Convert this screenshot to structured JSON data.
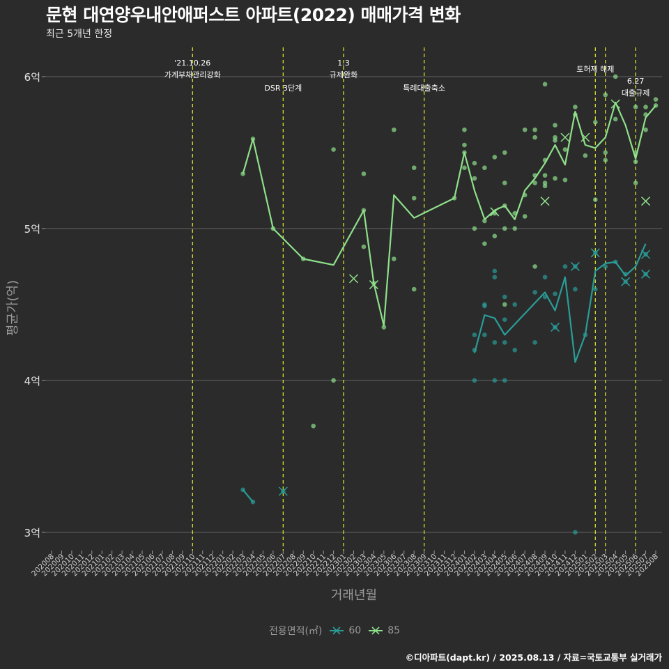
{
  "title": "문현 대연양우내안애퍼스트 아파트(2022) 매매가격 변화",
  "subtitle": "최근 5개년 한정",
  "caption": "©디아파트(dapt.kr) / 2025.08.13 / 자료=국토교통부 실거래가",
  "legend": {
    "title": "전용면적(㎡)",
    "items": [
      {
        "label": "60",
        "color": "#2a9d97"
      },
      {
        "label": "85",
        "color": "#8fe08a"
      }
    ]
  },
  "colors": {
    "background": "#2b2b2c",
    "grid": "#5b5b5b",
    "event_line": "#d7e02b",
    "axis_text": "#999999",
    "annotation_text": "#ffffff"
  },
  "chart_data": {
    "type": "line",
    "title": "문현 대연양우내안애퍼스트 아파트(2022) 매매가격 변화",
    "xlabel": "거래년월",
    "ylabel": "평균가(억)",
    "grid": true,
    "legend_position": "bottom",
    "x": [
      "202008",
      "202009",
      "202010",
      "202011",
      "202012",
      "202101",
      "202102",
      "202103",
      "202104",
      "202105",
      "202106",
      "202107",
      "202108",
      "202109",
      "202110",
      "202111",
      "202112",
      "202201",
      "202202",
      "202203",
      "202204",
      "202205",
      "202206",
      "202207",
      "202208",
      "202209",
      "202210",
      "202211",
      "202212",
      "202301",
      "202302",
      "202303",
      "202304",
      "202305",
      "202306",
      "202307",
      "202308",
      "202309",
      "202310",
      "202311",
      "202312",
      "202401",
      "202402",
      "202403",
      "202404",
      "202405",
      "202406",
      "202407",
      "202408",
      "202409",
      "202410",
      "202411",
      "202412",
      "202501",
      "202502",
      "202503",
      "202504",
      "202505",
      "202506",
      "202507",
      "202508"
    ],
    "ylim": [
      2.88,
      6.22
    ],
    "yticks": [
      {
        "value": 3,
        "label": "3억"
      },
      {
        "value": 4,
        "label": "4억"
      },
      {
        "value": 5,
        "label": "5억"
      },
      {
        "value": 6,
        "label": "6억"
      }
    ],
    "events": [
      {
        "month": "202110",
        "label": "'21.10.26\n가계부채관리강화",
        "tier": "top"
      },
      {
        "month": "202207",
        "label": "DSR 3단계",
        "tier": "low"
      },
      {
        "month": "202301",
        "label": "1.3\n규제완화",
        "tier": "top"
      },
      {
        "month": "202309",
        "label": "특례대출축소",
        "tier": "low"
      },
      {
        "month": "202502",
        "label": "토허제 해제",
        "tier": "mid"
      },
      {
        "month": "202503",
        "label": "",
        "tier": "none"
      },
      {
        "month": "202506",
        "label": "6.27\n대출규제",
        "tier": "lowmid"
      }
    ],
    "series": [
      {
        "name": "60",
        "color": "#2a9d97",
        "line": [
          {
            "x": "202203",
            "y": 3.28
          },
          {
            "x": "202204",
            "y": 3.2
          }
        ],
        "line2": [
          {
            "x": "202402",
            "y": 4.18
          },
          {
            "x": "202403",
            "y": 4.43
          },
          {
            "x": "202404",
            "y": 4.41
          },
          {
            "x": "202405",
            "y": 4.3
          },
          {
            "x": "202406",
            "y": 4.37
          },
          {
            "x": "202409",
            "y": 4.58
          },
          {
            "x": "202410",
            "y": 4.46
          },
          {
            "x": "202411",
            "y": 4.68
          },
          {
            "x": "202412",
            "y": 4.12
          },
          {
            "x": "202501",
            "y": 4.3
          },
          {
            "x": "202502",
            "y": 4.72
          },
          {
            "x": "202503",
            "y": 4.77
          },
          {
            "x": "202504",
            "y": 4.78
          },
          {
            "x": "202505",
            "y": 4.69
          },
          {
            "x": "202506",
            "y": 4.75
          },
          {
            "x": "202507",
            "y": 4.9
          }
        ],
        "points": [
          {
            "x": "202203",
            "y": 3.28
          },
          {
            "x": "202204",
            "y": 3.2
          },
          {
            "x": "202207",
            "y": 3.27
          },
          {
            "x": "202402",
            "y": 4.3
          },
          {
            "x": "202402",
            "y": 4.2
          },
          {
            "x": "202402",
            "y": 4.0
          },
          {
            "x": "202403",
            "y": 4.5
          },
          {
            "x": "202403",
            "y": 4.49
          },
          {
            "x": "202403",
            "y": 4.3
          },
          {
            "x": "202404",
            "y": 4.72
          },
          {
            "x": "202404",
            "y": 4.68
          },
          {
            "x": "202404",
            "y": 4.25
          },
          {
            "x": "202404",
            "y": 4.0
          },
          {
            "x": "202405",
            "y": 4.55
          },
          {
            "x": "202405",
            "y": 4.4
          },
          {
            "x": "202405",
            "y": 4.25
          },
          {
            "x": "202405",
            "y": 4.0
          },
          {
            "x": "202406",
            "y": 4.5
          },
          {
            "x": "202406",
            "y": 4.2
          },
          {
            "x": "202408",
            "y": 4.58
          },
          {
            "x": "202408",
            "y": 4.25
          },
          {
            "x": "202409",
            "y": 4.68
          },
          {
            "x": "202409",
            "y": 4.55
          },
          {
            "x": "202410",
            "y": 4.57
          },
          {
            "x": "202410",
            "y": 4.35
          },
          {
            "x": "202411",
            "y": 4.75
          },
          {
            "x": "202412",
            "y": 4.75
          },
          {
            "x": "202412",
            "y": 4.6
          },
          {
            "x": "202412",
            "y": 3.0
          },
          {
            "x": "202501",
            "y": 4.3
          },
          {
            "x": "202502",
            "y": 4.84
          },
          {
            "x": "202502",
            "y": 4.6
          },
          {
            "x": "202503",
            "y": 4.75
          },
          {
            "x": "202504",
            "y": 4.78
          },
          {
            "x": "202505",
            "y": 4.7
          },
          {
            "x": "202505",
            "y": 4.65
          },
          {
            "x": "202507",
            "y": 4.83
          },
          {
            "x": "202507",
            "y": 4.7
          }
        ],
        "crosses": [
          {
            "x": "202207",
            "y": 3.27
          },
          {
            "x": "202410",
            "y": 4.35
          },
          {
            "x": "202412",
            "y": 4.75
          },
          {
            "x": "202502",
            "y": 4.84
          },
          {
            "x": "202505",
            "y": 4.65
          },
          {
            "x": "202507",
            "y": 4.83
          },
          {
            "x": "202507",
            "y": 4.7
          }
        ]
      },
      {
        "name": "85",
        "color": "#8fe08a",
        "line": [
          {
            "x": "202203",
            "y": 5.36
          },
          {
            "x": "202204",
            "y": 5.59
          },
          {
            "x": "202206",
            "y": 5.0
          },
          {
            "x": "202209",
            "y": 4.8
          },
          {
            "x": "202212",
            "y": 4.76
          },
          {
            "x": "202303",
            "y": 5.12
          },
          {
            "x": "202304",
            "y": 4.64
          },
          {
            "x": "202305",
            "y": 4.36
          },
          {
            "x": "202306",
            "y": 5.22
          },
          {
            "x": "202308",
            "y": 5.07
          },
          {
            "x": "202312",
            "y": 5.2
          },
          {
            "x": "202401",
            "y": 5.5
          },
          {
            "x": "202402",
            "y": 5.25
          },
          {
            "x": "202403",
            "y": 5.06
          },
          {
            "x": "202404",
            "y": 5.12
          },
          {
            "x": "202405",
            "y": 5.15
          },
          {
            "x": "202406",
            "y": 5.06
          },
          {
            "x": "202407",
            "y": 5.25
          },
          {
            "x": "202408",
            "y": 5.33
          },
          {
            "x": "202409",
            "y": 5.43
          },
          {
            "x": "202410",
            "y": 5.55
          },
          {
            "x": "202411",
            "y": 5.42
          },
          {
            "x": "202412",
            "y": 5.77
          },
          {
            "x": "202501",
            "y": 5.55
          },
          {
            "x": "202502",
            "y": 5.53
          },
          {
            "x": "202503",
            "y": 5.6
          },
          {
            "x": "202504",
            "y": 5.83
          },
          {
            "x": "202505",
            "y": 5.68
          },
          {
            "x": "202506",
            "y": 5.46
          },
          {
            "x": "202507",
            "y": 5.73
          },
          {
            "x": "202508",
            "y": 5.81
          }
        ],
        "points": [
          {
            "x": "202203",
            "y": 5.36
          },
          {
            "x": "202204",
            "y": 5.59
          },
          {
            "x": "202206",
            "y": 5.0
          },
          {
            "x": "202209",
            "y": 4.8
          },
          {
            "x": "202210",
            "y": 3.7
          },
          {
            "x": "202212",
            "y": 5.52
          },
          {
            "x": "202212",
            "y": 4.0
          },
          {
            "x": "202303",
            "y": 5.36
          },
          {
            "x": "202303",
            "y": 5.12
          },
          {
            "x": "202303",
            "y": 4.88
          },
          {
            "x": "202304",
            "y": 4.64
          },
          {
            "x": "202305",
            "y": 4.35
          },
          {
            "x": "202306",
            "y": 5.65
          },
          {
            "x": "202306",
            "y": 4.8
          },
          {
            "x": "202308",
            "y": 5.4
          },
          {
            "x": "202308",
            "y": 5.2
          },
          {
            "x": "202308",
            "y": 4.6
          },
          {
            "x": "202312",
            "y": 5.2
          },
          {
            "x": "202401",
            "y": 5.65
          },
          {
            "x": "202401",
            "y": 5.55
          },
          {
            "x": "202401",
            "y": 5.5
          },
          {
            "x": "202401",
            "y": 5.4
          },
          {
            "x": "202402",
            "y": 5.43
          },
          {
            "x": "202402",
            "y": 5.33
          },
          {
            "x": "202402",
            "y": 5.0
          },
          {
            "x": "202403",
            "y": 5.4
          },
          {
            "x": "202403",
            "y": 5.05
          },
          {
            "x": "202403",
            "y": 4.9
          },
          {
            "x": "202404",
            "y": 5.47
          },
          {
            "x": "202404",
            "y": 5.1
          },
          {
            "x": "202404",
            "y": 4.95
          },
          {
            "x": "202405",
            "y": 5.5
          },
          {
            "x": "202405",
            "y": 5.3
          },
          {
            "x": "202405",
            "y": 5.15
          },
          {
            "x": "202405",
            "y": 5.0
          },
          {
            "x": "202405",
            "y": 4.5
          },
          {
            "x": "202406",
            "y": 5.1
          },
          {
            "x": "202406",
            "y": 5.0
          },
          {
            "x": "202407",
            "y": 5.65
          },
          {
            "x": "202407",
            "y": 5.22
          },
          {
            "x": "202407",
            "y": 5.08
          },
          {
            "x": "202408",
            "y": 5.65
          },
          {
            "x": "202408",
            "y": 5.6
          },
          {
            "x": "202408",
            "y": 5.35
          },
          {
            "x": "202408",
            "y": 5.3
          },
          {
            "x": "202408",
            "y": 4.75
          },
          {
            "x": "202409",
            "y": 5.95
          },
          {
            "x": "202409",
            "y": 5.45
          },
          {
            "x": "202409",
            "y": 5.35
          },
          {
            "x": "202409",
            "y": 5.3
          },
          {
            "x": "202409",
            "y": 5.28
          },
          {
            "x": "202410",
            "y": 5.68
          },
          {
            "x": "202410",
            "y": 5.6
          },
          {
            "x": "202410",
            "y": 5.58
          },
          {
            "x": "202410",
            "y": 5.33
          },
          {
            "x": "202411",
            "y": 5.52
          },
          {
            "x": "202411",
            "y": 5.32
          },
          {
            "x": "202412",
            "y": 5.8
          },
          {
            "x": "202412",
            "y": 5.75
          },
          {
            "x": "202501",
            "y": 5.48
          },
          {
            "x": "202502",
            "y": 5.7
          },
          {
            "x": "202502",
            "y": 5.19
          },
          {
            "x": "202503",
            "y": 5.88
          },
          {
            "x": "202503",
            "y": 5.5
          },
          {
            "x": "202503",
            "y": 5.45
          },
          {
            "x": "202504",
            "y": 6.0
          },
          {
            "x": "202504",
            "y": 5.72
          },
          {
            "x": "202506",
            "y": 5.8
          },
          {
            "x": "202506",
            "y": 5.5
          },
          {
            "x": "202506",
            "y": 5.44
          },
          {
            "x": "202506",
            "y": 5.3
          },
          {
            "x": "202507",
            "y": 5.8
          },
          {
            "x": "202507",
            "y": 5.75
          },
          {
            "x": "202507",
            "y": 5.65
          },
          {
            "x": "202508",
            "y": 5.85
          },
          {
            "x": "202508",
            "y": 5.81
          }
        ],
        "crosses": [
          {
            "x": "202302",
            "y": 4.67
          },
          {
            "x": "202304",
            "y": 4.63
          },
          {
            "x": "202404",
            "y": 5.11
          },
          {
            "x": "202409",
            "y": 5.18
          },
          {
            "x": "202411",
            "y": 5.6
          },
          {
            "x": "202501",
            "y": 5.6
          },
          {
            "x": "202504",
            "y": 5.82
          },
          {
            "x": "202507",
            "y": 5.18
          }
        ]
      }
    ]
  }
}
